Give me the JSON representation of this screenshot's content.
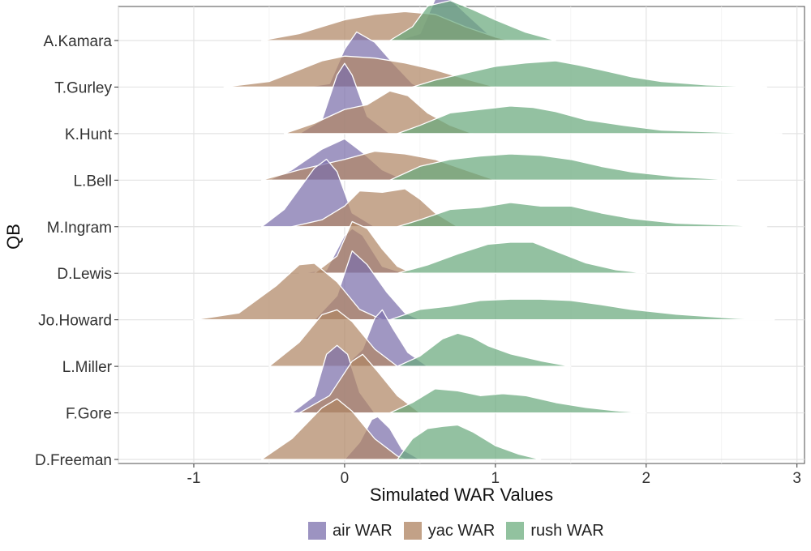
{
  "chart_data": {
    "type": "ridgeline",
    "xlabel": "Simulated WAR Values",
    "ylabel": "QB",
    "xlim": [
      -1.5,
      3.05
    ],
    "x_ticks": [
      "-1",
      "0",
      "1",
      "2",
      "3"
    ],
    "x_tick_values": [
      -1,
      0,
      1,
      2,
      3
    ],
    "categories": [
      "A.Kamara",
      "T.Gurley",
      "K.Hunt",
      "L.Bell",
      "M.Ingram",
      "D.Lewis",
      "Jo.Howard",
      "L.Miller",
      "F.Gore",
      "D.Freeman"
    ],
    "series": [
      {
        "name": "air WAR",
        "color": "#7b6fab",
        "values": [
          [
            [
              0.35,
              0
            ],
            [
              0.5,
              0.1
            ],
            [
              0.6,
              0.6
            ],
            [
              0.68,
              0.65
            ],
            [
              0.8,
              0.4
            ],
            [
              0.95,
              0.1
            ],
            [
              1.05,
              0
            ]
          ],
          [
            [
              -0.25,
              0
            ],
            [
              -0.1,
              0.05
            ],
            [
              0,
              0.55
            ],
            [
              0.08,
              0.8
            ],
            [
              0.2,
              0.65
            ],
            [
              0.32,
              0.35
            ],
            [
              0.45,
              0.05
            ],
            [
              0.5,
              0
            ]
          ],
          [
            [
              -0.3,
              0
            ],
            [
              -0.15,
              0.2
            ],
            [
              -0.05,
              0.85
            ],
            [
              0,
              1.02
            ],
            [
              0.05,
              0.85
            ],
            [
              0.15,
              0.25
            ],
            [
              0.3,
              0
            ]
          ],
          [
            [
              -0.5,
              0
            ],
            [
              -0.35,
              0.15
            ],
            [
              -0.15,
              0.45
            ],
            [
              0,
              0.6
            ],
            [
              0.12,
              0.4
            ],
            [
              0.25,
              0.15
            ],
            [
              0.4,
              0
            ]
          ],
          [
            [
              -0.55,
              0
            ],
            [
              -0.4,
              0.25
            ],
            [
              -0.2,
              0.85
            ],
            [
              -0.12,
              0.98
            ],
            [
              -0.05,
              0.8
            ],
            [
              0.05,
              0.2
            ],
            [
              0.2,
              0
            ]
          ],
          [
            [
              -0.3,
              0
            ],
            [
              -0.12,
              0.05
            ],
            [
              0,
              0.55
            ],
            [
              0.05,
              0.65
            ],
            [
              0.12,
              0.55
            ],
            [
              0.25,
              0.1
            ],
            [
              0.4,
              0
            ]
          ],
          [
            [
              -0.2,
              0
            ],
            [
              -0.05,
              0.35
            ],
            [
              0.05,
              1.0
            ],
            [
              0.15,
              0.8
            ],
            [
              0.28,
              0.4
            ],
            [
              0.4,
              0.1
            ],
            [
              0.5,
              0
            ]
          ],
          [
            [
              0,
              0
            ],
            [
              0.12,
              0.25
            ],
            [
              0.2,
              0.7
            ],
            [
              0.25,
              0.82
            ],
            [
              0.32,
              0.55
            ],
            [
              0.42,
              0.2
            ],
            [
              0.55,
              0
            ]
          ],
          [
            [
              -0.35,
              0
            ],
            [
              -0.2,
              0.25
            ],
            [
              -0.12,
              0.85
            ],
            [
              -0.05,
              0.98
            ],
            [
              0.02,
              0.85
            ],
            [
              0.1,
              0.3
            ],
            [
              0.2,
              0
            ]
          ],
          [
            [
              0,
              0
            ],
            [
              0.1,
              0.25
            ],
            [
              0.18,
              0.58
            ],
            [
              0.22,
              0.62
            ],
            [
              0.3,
              0.45
            ],
            [
              0.38,
              0.15
            ],
            [
              0.5,
              0
            ]
          ]
        ]
      },
      {
        "name": "yac WAR",
        "color": "#b08665",
        "values": [
          [
            [
              -0.55,
              0
            ],
            [
              -0.3,
              0.1
            ],
            [
              0,
              0.3
            ],
            [
              0.2,
              0.38
            ],
            [
              0.4,
              0.42
            ],
            [
              0.6,
              0.38
            ],
            [
              0.8,
              0.2
            ],
            [
              1.0,
              0.05
            ],
            [
              1.1,
              0
            ]
          ],
          [
            [
              -0.8,
              0
            ],
            [
              -0.5,
              0.08
            ],
            [
              -0.3,
              0.25
            ],
            [
              -0.15,
              0.38
            ],
            [
              0,
              0.45
            ],
            [
              0.2,
              0.42
            ],
            [
              0.4,
              0.35
            ],
            [
              0.6,
              0.25
            ],
            [
              0.8,
              0.12
            ],
            [
              1.0,
              0
            ]
          ],
          [
            [
              -0.4,
              0
            ],
            [
              -0.2,
              0.15
            ],
            [
              0,
              0.35
            ],
            [
              0.15,
              0.42
            ],
            [
              0.3,
              0.62
            ],
            [
              0.42,
              0.55
            ],
            [
              0.55,
              0.3
            ],
            [
              0.7,
              0.12
            ],
            [
              0.85,
              0
            ]
          ],
          [
            [
              -0.55,
              0
            ],
            [
              -0.3,
              0.15
            ],
            [
              0,
              0.3
            ],
            [
              0.2,
              0.42
            ],
            [
              0.4,
              0.38
            ],
            [
              0.6,
              0.3
            ],
            [
              0.8,
              0.15
            ],
            [
              1.0,
              0
            ]
          ],
          [
            [
              -0.35,
              0
            ],
            [
              -0.15,
              0.1
            ],
            [
              0,
              0.3
            ],
            [
              0.1,
              0.52
            ],
            [
              0.25,
              0.5
            ],
            [
              0.4,
              0.55
            ],
            [
              0.5,
              0.4
            ],
            [
              0.6,
              0.2
            ],
            [
              0.75,
              0
            ]
          ],
          [
            [
              -0.2,
              0
            ],
            [
              -0.05,
              0.25
            ],
            [
              0.05,
              0.75
            ],
            [
              0.15,
              0.65
            ],
            [
              0.25,
              0.35
            ],
            [
              0.35,
              0.1
            ],
            [
              0.45,
              0
            ]
          ],
          [
            [
              -1.0,
              0
            ],
            [
              -0.7,
              0.1
            ],
            [
              -0.45,
              0.5
            ],
            [
              -0.3,
              0.8
            ],
            [
              -0.2,
              0.82
            ],
            [
              -0.05,
              0.55
            ],
            [
              0.1,
              0.15
            ],
            [
              0.25,
              0
            ]
          ],
          [
            [
              -0.5,
              0
            ],
            [
              -0.3,
              0.35
            ],
            [
              -0.15,
              0.75
            ],
            [
              -0.05,
              0.82
            ],
            [
              0.05,
              0.65
            ],
            [
              0.2,
              0.25
            ],
            [
              0.35,
              0
            ]
          ],
          [
            [
              -0.3,
              0
            ],
            [
              -0.1,
              0.25
            ],
            [
              0.05,
              0.75
            ],
            [
              0.12,
              0.85
            ],
            [
              0.22,
              0.6
            ],
            [
              0.35,
              0.25
            ],
            [
              0.5,
              0
            ]
          ],
          [
            [
              -0.55,
              0
            ],
            [
              -0.35,
              0.3
            ],
            [
              -0.15,
              0.75
            ],
            [
              -0.05,
              0.88
            ],
            [
              0.05,
              0.7
            ],
            [
              0.2,
              0.3
            ],
            [
              0.35,
              0.05
            ],
            [
              0.4,
              0
            ]
          ]
        ]
      },
      {
        "name": "rush WAR",
        "color": "#6aa97d",
        "values": [
          [
            [
              0.3,
              0
            ],
            [
              0.45,
              0.2
            ],
            [
              0.55,
              0.5
            ],
            [
              0.7,
              0.58
            ],
            [
              0.85,
              0.45
            ],
            [
              1.0,
              0.3
            ],
            [
              1.2,
              0.12
            ],
            [
              1.4,
              0
            ]
          ],
          [
            [
              0.45,
              0
            ],
            [
              0.6,
              0.1
            ],
            [
              0.8,
              0.2
            ],
            [
              1.0,
              0.3
            ],
            [
              1.2,
              0.35
            ],
            [
              1.4,
              0.38
            ],
            [
              1.55,
              0.32
            ],
            [
              1.7,
              0.25
            ],
            [
              1.9,
              0.15
            ],
            [
              2.1,
              0.08
            ],
            [
              2.4,
              0.03
            ],
            [
              2.8,
              0
            ]
          ],
          [
            [
              0.35,
              0
            ],
            [
              0.5,
              0.12
            ],
            [
              0.7,
              0.3
            ],
            [
              0.9,
              0.35
            ],
            [
              1.1,
              0.4
            ],
            [
              1.25,
              0.38
            ],
            [
              1.4,
              0.32
            ],
            [
              1.6,
              0.2
            ],
            [
              1.85,
              0.12
            ],
            [
              2.1,
              0.05
            ],
            [
              2.5,
              0.02
            ],
            [
              2.9,
              0
            ]
          ],
          [
            [
              0.3,
              0
            ],
            [
              0.5,
              0.2
            ],
            [
              0.7,
              0.3
            ],
            [
              0.9,
              0.35
            ],
            [
              1.1,
              0.38
            ],
            [
              1.3,
              0.36
            ],
            [
              1.5,
              0.3
            ],
            [
              1.7,
              0.2
            ],
            [
              1.9,
              0.12
            ],
            [
              2.2,
              0.05
            ],
            [
              2.6,
              0
            ]
          ],
          [
            [
              0.35,
              0
            ],
            [
              0.5,
              0.1
            ],
            [
              0.7,
              0.25
            ],
            [
              0.9,
              0.28
            ],
            [
              1.1,
              0.35
            ],
            [
              1.3,
              0.3
            ],
            [
              1.5,
              0.3
            ],
            [
              1.7,
              0.2
            ],
            [
              1.9,
              0.12
            ],
            [
              2.2,
              0.05
            ],
            [
              2.6,
              0.02
            ],
            [
              2.8,
              0
            ]
          ],
          [
            [
              0.35,
              0
            ],
            [
              0.55,
              0.12
            ],
            [
              0.75,
              0.28
            ],
            [
              0.95,
              0.42
            ],
            [
              1.1,
              0.45
            ],
            [
              1.25,
              0.45
            ],
            [
              1.4,
              0.32
            ],
            [
              1.6,
              0.15
            ],
            [
              1.8,
              0.05
            ],
            [
              2.0,
              0
            ]
          ],
          [
            [
              0.3,
              0
            ],
            [
              0.5,
              0.15
            ],
            [
              0.7,
              0.2
            ],
            [
              0.9,
              0.28
            ],
            [
              1.1,
              0.3
            ],
            [
              1.3,
              0.3
            ],
            [
              1.5,
              0.28
            ],
            [
              1.7,
              0.22
            ],
            [
              1.9,
              0.15
            ],
            [
              2.2,
              0.08
            ],
            [
              2.6,
              0.02
            ],
            [
              2.85,
              0
            ]
          ],
          [
            [
              0.35,
              0
            ],
            [
              0.5,
              0.15
            ],
            [
              0.65,
              0.4
            ],
            [
              0.75,
              0.48
            ],
            [
              0.85,
              0.42
            ],
            [
              0.95,
              0.3
            ],
            [
              1.1,
              0.18
            ],
            [
              1.3,
              0.08
            ],
            [
              1.5,
              0
            ]
          ],
          [
            [
              0.3,
              0
            ],
            [
              0.45,
              0.15
            ],
            [
              0.6,
              0.35
            ],
            [
              0.75,
              0.32
            ],
            [
              0.9,
              0.25
            ],
            [
              1.05,
              0.28
            ],
            [
              1.2,
              0.25
            ],
            [
              1.4,
              0.15
            ],
            [
              1.6,
              0.08
            ],
            [
              1.8,
              0.03
            ],
            [
              2.0,
              0
            ]
          ],
          [
            [
              0.35,
              0
            ],
            [
              0.45,
              0.3
            ],
            [
              0.55,
              0.45
            ],
            [
              0.65,
              0.48
            ],
            [
              0.75,
              0.5
            ],
            [
              0.85,
              0.4
            ],
            [
              1.0,
              0.2
            ],
            [
              1.15,
              0.08
            ],
            [
              1.3,
              0
            ]
          ]
        ]
      }
    ],
    "legend_position": "bottom",
    "grid": true
  }
}
